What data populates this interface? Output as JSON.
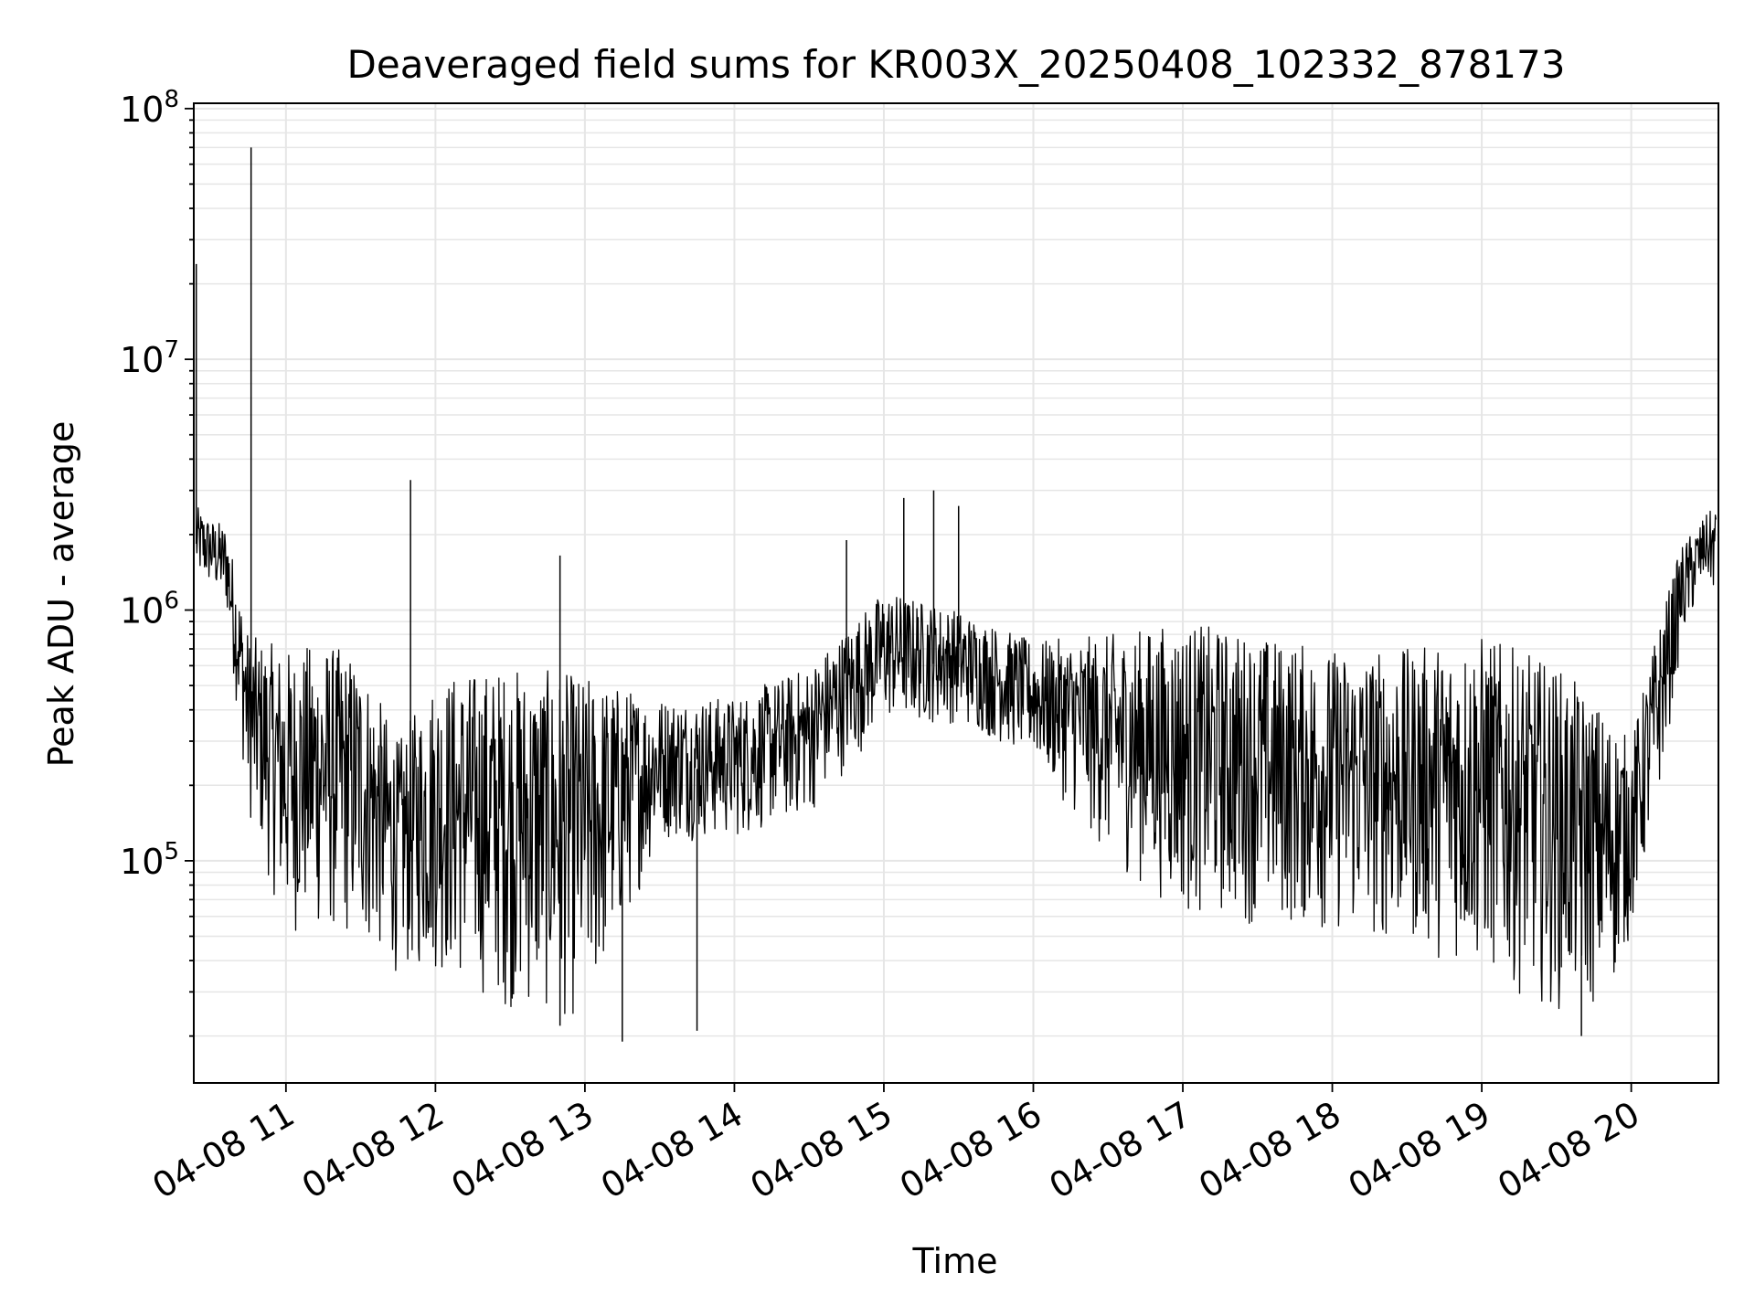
{
  "chart_data": {
    "type": "line",
    "title": "Deaveraged field sums for KR003X_20250408_102332_878173",
    "xlabel": "Time",
    "ylabel": "Peak ADU - average",
    "yscale": "log",
    "ylim": [
      13000,
      105000000
    ],
    "xlim": [
      "2025-04-08 10:23",
      "2025-04-08 20:35"
    ],
    "grid": true,
    "grid_minor": true,
    "y_ticks": [
      {
        "value": 100000,
        "base": "10",
        "exp": "5"
      },
      {
        "value": 1000000,
        "base": "10",
        "exp": "6"
      },
      {
        "value": 10000000,
        "base": "10",
        "exp": "7"
      },
      {
        "value": 100000000,
        "base": "10",
        "exp": "8"
      }
    ],
    "x_ticks": [
      {
        "time": "2025-04-08 11:00",
        "label": "04-08 11"
      },
      {
        "time": "2025-04-08 12:00",
        "label": "04-08 12"
      },
      {
        "time": "2025-04-08 13:00",
        "label": "04-08 13"
      },
      {
        "time": "2025-04-08 14:00",
        "label": "04-08 14"
      },
      {
        "time": "2025-04-08 15:00",
        "label": "04-08 15"
      },
      {
        "time": "2025-04-08 16:00",
        "label": "04-08 16"
      },
      {
        "time": "2025-04-08 17:00",
        "label": "04-08 17"
      },
      {
        "time": "2025-04-08 18:00",
        "label": "04-08 18"
      },
      {
        "time": "2025-04-08 19:00",
        "label": "04-08 19"
      },
      {
        "time": "2025-04-08 20:00",
        "label": "04-08 20"
      }
    ],
    "line_color": "#000000",
    "grid_color": "#e6e6e6",
    "series": [
      {
        "values_note_free": true,
        "x": [
          "2025-04-08 10:24",
          "2025-04-08 10:30",
          "2025-04-08 10:36",
          "2025-04-08 10:45",
          "2025-04-08 11:00",
          "2025-04-08 11:15",
          "2025-04-08 11:30",
          "2025-04-08 11:45",
          "2025-04-08 12:00",
          "2025-04-08 12:30",
          "2025-04-08 13:00",
          "2025-04-08 13:30",
          "2025-04-08 14:00",
          "2025-04-08 14:30",
          "2025-04-08 15:00",
          "2025-04-08 15:30",
          "2025-04-08 16:00",
          "2025-04-08 16:30",
          "2025-04-08 17:00",
          "2025-04-08 17:30",
          "2025-04-08 18:00",
          "2025-04-08 18:30",
          "2025-04-08 19:00",
          "2025-04-08 19:30",
          "2025-04-08 19:50",
          "2025-04-08 20:00",
          "2025-04-08 20:10",
          "2025-04-08 20:20",
          "2025-04-08 20:30",
          "2025-04-08 20:34"
        ],
        "upper": [
          2600000,
          2300000,
          2200000,
          800000,
          700000,
          750000,
          650000,
          300000,
          550000,
          600000,
          550000,
          450000,
          450000,
          600000,
          1200000,
          1000000,
          750000,
          800000,
          900000,
          800000,
          700000,
          700000,
          800000,
          600000,
          400000,
          300000,
          800000,
          1800000,
          2400000,
          2600000
        ],
        "lower": [
          1300000,
          1200000,
          1000000,
          150000,
          50000,
          50000,
          45000,
          35000,
          35000,
          25000,
          22000,
          120000,
          120000,
          150000,
          350000,
          350000,
          250000,
          100000,
          60000,
          55000,
          50000,
          45000,
          35000,
          25000,
          25000,
          50000,
          150000,
          700000,
          1300000,
          1100000
        ],
        "spikes": [
          {
            "time": "2025-04-08 10:24",
            "value": 24000000
          },
          {
            "time": "2025-04-08 10:46",
            "value": 70000000
          },
          {
            "time": "2025-04-08 11:50",
            "value": 3300000
          },
          {
            "time": "2025-04-08 12:50",
            "value": 1650000
          },
          {
            "time": "2025-04-08 14:45",
            "value": 1900000
          },
          {
            "time": "2025-04-08 15:08",
            "value": 2800000
          },
          {
            "time": "2025-04-08 15:20",
            "value": 3000000
          },
          {
            "time": "2025-04-08 15:30",
            "value": 2600000
          },
          {
            "time": "2025-04-08 12:50",
            "value": 22000
          },
          {
            "time": "2025-04-08 13:15",
            "value": 19000
          },
          {
            "time": "2025-04-08 13:45",
            "value": 21000
          },
          {
            "time": "2025-04-08 19:40",
            "value": 20000
          }
        ]
      }
    ]
  }
}
